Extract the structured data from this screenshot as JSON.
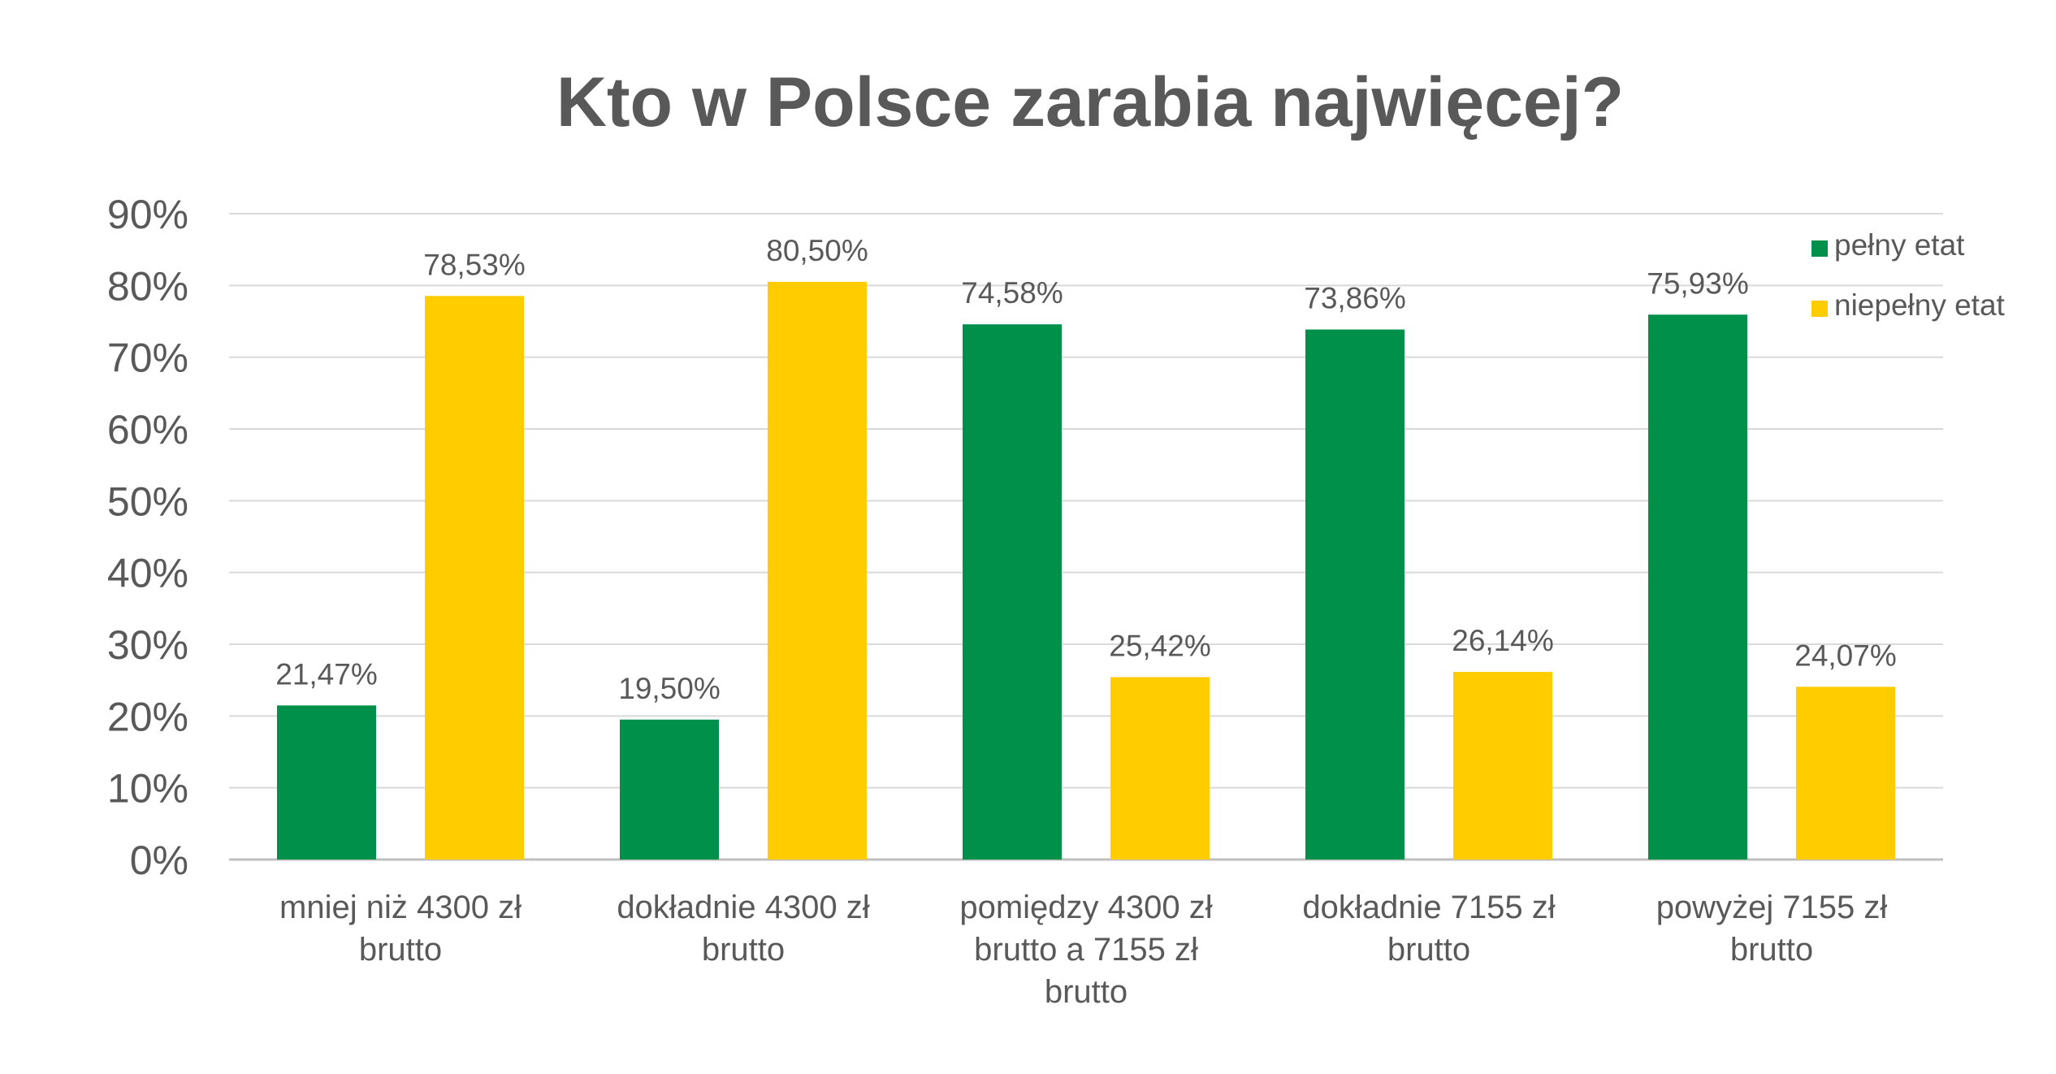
{
  "chart_data": {
    "type": "bar",
    "title": "Kto w Polsce zarabia najwięcej?",
    "xlabel": "",
    "ylabel": "",
    "ylim": [
      0,
      0.9
    ],
    "yticks": [
      0,
      0.1,
      0.2,
      0.3,
      0.4,
      0.5,
      0.6,
      0.7,
      0.8,
      0.9
    ],
    "ytick_labels": [
      "0%",
      "10%",
      "20%",
      "30%",
      "40%",
      "50%",
      "60%",
      "70%",
      "80%",
      "90%"
    ],
    "grid": true,
    "legend_position": "top-right",
    "categories": [
      [
        "mniej niż 4300 zł",
        "brutto"
      ],
      [
        "dokładnie 4300 zł",
        "brutto"
      ],
      [
        "pomiędzy 4300 zł",
        "brutto a 7155 zł",
        "brutto"
      ],
      [
        "dokładnie 7155 zł",
        "brutto"
      ],
      [
        "powyżej 7155 zł",
        "brutto"
      ]
    ],
    "series": [
      {
        "name": "pełny etat",
        "color": "#00904A",
        "values": [
          0.2147,
          0.195,
          0.7458,
          0.7386,
          0.7593
        ],
        "labels": [
          "21,47%",
          "19,50%",
          "74,58%",
          "73,86%",
          "75,93%"
        ]
      },
      {
        "name": "niepełny etat",
        "color": "#FFCC00",
        "values": [
          0.7853,
          0.805,
          0.2542,
          0.2614,
          0.2407
        ],
        "labels": [
          "78,53%",
          "80,50%",
          "25,42%",
          "26,14%",
          "24,07%"
        ]
      }
    ],
    "colors": {
      "title": "#595959",
      "axis_text": "#595959",
      "grid": "#D9D9D9"
    }
  }
}
